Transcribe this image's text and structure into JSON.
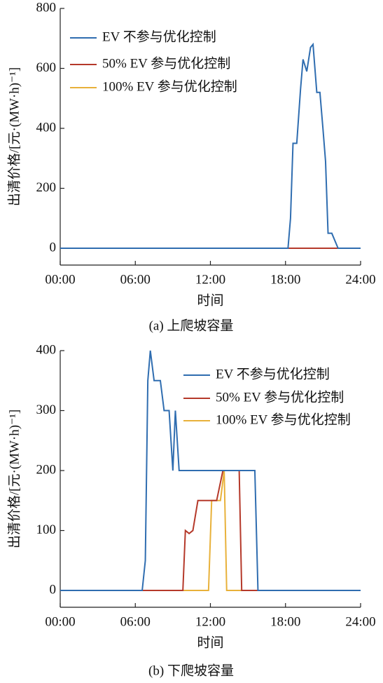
{
  "chart_data": [
    {
      "type": "line",
      "caption": "(a)  上爬坡容量",
      "xlabel": "时间",
      "ylabel": "出清价格/[元·(MW·h)⁻¹]",
      "xlim": [
        0,
        24
      ],
      "xticks": [
        {
          "value": 0,
          "label": "00:00"
        },
        {
          "value": 6,
          "label": "06:00"
        },
        {
          "value": 12,
          "label": "12:00"
        },
        {
          "value": 18,
          "label": "18:00"
        },
        {
          "value": 24,
          "label": "24:00"
        }
      ],
      "ylim": [
        -56,
        800
      ],
      "yticks": [
        0,
        200,
        400,
        600,
        800
      ],
      "series": [
        {
          "name": "EV 不参与优化控制",
          "color": "#2f6db0",
          "x": [
            0,
            18.2,
            18.4,
            18.6,
            18.9,
            19.2,
            19.4,
            19.7,
            20.0,
            20.2,
            20.5,
            20.75,
            21.0,
            21.2,
            21.4,
            21.7,
            22.2,
            24
          ],
          "values": [
            0,
            0,
            100,
            350,
            350,
            530,
            630,
            590,
            670,
            680,
            520,
            520,
            395,
            290,
            50,
            50,
            0,
            0
          ]
        },
        {
          "name": "50% EV 参与优化控制",
          "color": "#b5392a",
          "x": [
            0,
            24
          ],
          "values": [
            0,
            0
          ]
        },
        {
          "name": "100% EV 参与优化控制",
          "color": "#e8b13a",
          "x": [
            0,
            24
          ],
          "values": [
            0,
            0
          ]
        }
      ]
    },
    {
      "type": "line",
      "caption": "(b)  下爬坡容量",
      "xlabel": "时间",
      "ylabel": "出清价格/[元·(MW·h)⁻¹]",
      "xlim": [
        0,
        24
      ],
      "xticks": [
        {
          "value": 0,
          "label": "00:00"
        },
        {
          "value": 6,
          "label": "06:00"
        },
        {
          "value": 12,
          "label": "12:00"
        },
        {
          "value": 18,
          "label": "18:00"
        },
        {
          "value": 24,
          "label": "24:00"
        }
      ],
      "ylim": [
        -28,
        400
      ],
      "yticks": [
        0,
        100,
        200,
        300,
        400
      ],
      "series": [
        {
          "name": "EV 不参与优化控制",
          "color": "#2f6db0",
          "x": [
            0,
            6.55,
            6.8,
            7.0,
            7.2,
            7.5,
            8.0,
            8.3,
            8.7,
            9.0,
            9.2,
            9.5,
            15.55,
            15.8,
            24
          ],
          "values": [
            0,
            0,
            50,
            350,
            400,
            350,
            350,
            300,
            300,
            200,
            300,
            200,
            200,
            0,
            0
          ]
        },
        {
          "name": "50% EV 参与优化控制",
          "color": "#b5392a",
          "x": [
            0,
            9.8,
            10.0,
            10.3,
            10.6,
            11.0,
            12.0,
            12.5,
            13.0,
            14.3,
            14.5,
            24
          ],
          "values": [
            0,
            0,
            100,
            95,
            100,
            150,
            150,
            150,
            200,
            200,
            0,
            0
          ]
        },
        {
          "name": "100% EV 参与优化控制",
          "color": "#e8b13a",
          "x": [
            0,
            11.85,
            12.1,
            12.8,
            13.1,
            13.3,
            24
          ],
          "values": [
            0,
            0,
            150,
            150,
            200,
            0,
            0
          ]
        }
      ]
    }
  ]
}
